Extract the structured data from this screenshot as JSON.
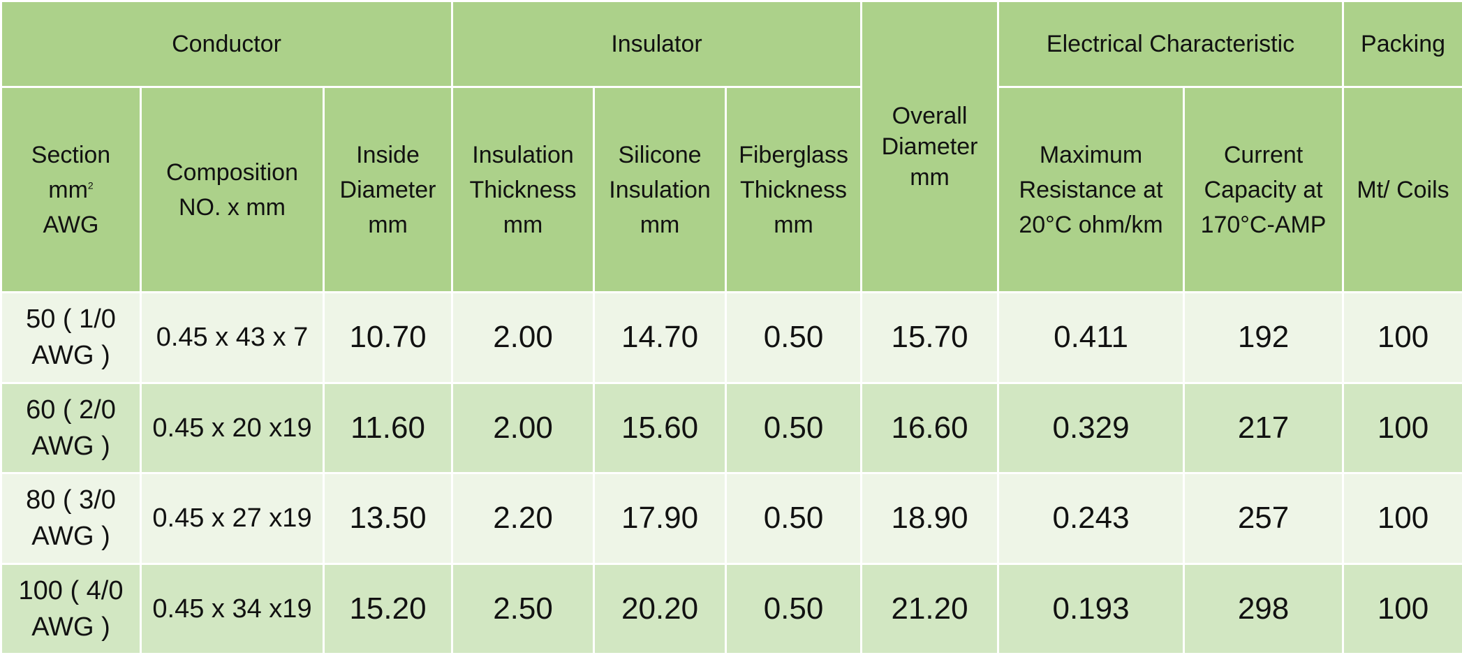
{
  "groups": {
    "conductor": "Conductor",
    "insulator": "Insulator",
    "overall": "Overall Diameter mm",
    "electrical": "Electrical Characteristic",
    "packing": "Packing"
  },
  "columns": {
    "section": {
      "line1": "Section",
      "line2_base": "mm",
      "line2_sup": "2",
      "line3": "AWG"
    },
    "composition": "Composition NO. x mm",
    "inside_diameter": "Inside Diameter mm",
    "insulation_thickness": "Insulation Thickness mm",
    "silicone_insulation": "Silicone Insulation mm",
    "fiberglass_thickness": "Fiberglass Thickness mm",
    "max_resistance": "Maximum Resistance at 20°C ohm/km",
    "current_capacity": "Current Capacity at 170°C-AMP",
    "mt_coils": "Mt/ Coils"
  },
  "rows": [
    {
      "section": "50 ( 1/0 AWG )",
      "composition": "0.45 x 43 x 7",
      "inside_diameter": "10.70",
      "insulation_thickness": "2.00",
      "silicone_insulation": "14.70",
      "fiberglass_thickness": "0.50",
      "overall_diameter": "15.70",
      "max_resistance": "0.411",
      "current_capacity": "192",
      "mt_coils": "100"
    },
    {
      "section": "60 ( 2/0 AWG )",
      "composition": "0.45 x 20 x19",
      "inside_diameter": "11.60",
      "insulation_thickness": "2.00",
      "silicone_insulation": "15.60",
      "fiberglass_thickness": "0.50",
      "overall_diameter": "16.60",
      "max_resistance": "0.329",
      "current_capacity": "217",
      "mt_coils": "100"
    },
    {
      "section": "80 ( 3/0 AWG )",
      "composition": "0.45 x 27 x19",
      "inside_diameter": "13.50",
      "insulation_thickness": "2.20",
      "silicone_insulation": "17.90",
      "fiberglass_thickness": "0.50",
      "overall_diameter": "18.90",
      "max_resistance": "0.243",
      "current_capacity": "257",
      "mt_coils": "100"
    },
    {
      "section": "100 ( 4/0 AWG )",
      "composition": "0.45 x 34 x19",
      "inside_diameter": "15.20",
      "insulation_thickness": "2.50",
      "silicone_insulation": "20.20",
      "fiberglass_thickness": "0.50",
      "overall_diameter": "21.20",
      "max_resistance": "0.193",
      "current_capacity": "298",
      "mt_coils": "100"
    }
  ],
  "colors": {
    "header_bg": "#acd18a",
    "row_light": "#eef5e7",
    "row_dark": "#d2e7c2",
    "border": "#ffffff"
  }
}
